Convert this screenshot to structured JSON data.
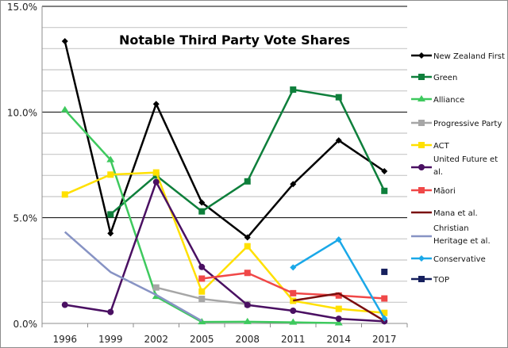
{
  "chart_data": {
    "type": "line",
    "title": "Notable Third Party Vote Shares",
    "xlabel": "",
    "ylabel": "",
    "ylim": [
      0,
      15
    ],
    "y_ticks": [
      "0.0%",
      "5.0%",
      "10.0%",
      "15.0%"
    ],
    "y_tick_values": [
      0,
      5,
      10,
      15
    ],
    "minor_gridlines_every": 1,
    "grid": true,
    "legend_position": "right",
    "categories": [
      "1996",
      "1999",
      "2002",
      "2005",
      "2008",
      "2011",
      "2014",
      "2017"
    ],
    "series": [
      {
        "name": "New Zealand First",
        "color": "#000000",
        "marker": "diamond",
        "values": [
          13.35,
          4.26,
          10.38,
          5.72,
          4.07,
          6.59,
          8.66,
          7.2
        ]
      },
      {
        "name": "Green",
        "color": "#0e7f3b",
        "marker": "square",
        "values": [
          null,
          5.16,
          7.0,
          5.3,
          6.72,
          11.06,
          10.7,
          6.27
        ]
      },
      {
        "name": "Alliance",
        "color": "#3ec95e",
        "marker": "triangle",
        "values": [
          10.1,
          7.74,
          1.27,
          0.07,
          0.08,
          0.05,
          0.02,
          null
        ]
      },
      {
        "name": "Progressive Party",
        "color": "#a6a6a6",
        "marker": "square",
        "values": [
          null,
          null,
          1.7,
          1.16,
          0.91,
          null,
          null,
          null
        ]
      },
      {
        "name": "ACT",
        "color": "#ffe000",
        "marker": "square",
        "values": [
          6.1,
          7.04,
          7.14,
          1.51,
          3.65,
          1.07,
          0.69,
          0.5
        ]
      },
      {
        "name": "United Future et al.",
        "color": "#4a1062",
        "marker": "circle",
        "values": [
          0.88,
          0.54,
          6.69,
          2.67,
          0.87,
          0.6,
          0.22,
          0.1
        ]
      },
      {
        "name": "Māori",
        "color": "#f04848",
        "marker": "square",
        "values": [
          null,
          null,
          null,
          2.12,
          2.39,
          1.43,
          1.32,
          1.18
        ]
      },
      {
        "name": "Mana et al.",
        "color": "#7a0e0e",
        "marker": "none",
        "values": [
          null,
          null,
          null,
          null,
          null,
          1.08,
          1.42,
          0.12
        ]
      },
      {
        "name": "Christian Heritage et al.",
        "color": "#8793c4",
        "marker": "none",
        "values": [
          4.33,
          2.43,
          1.35,
          0.12,
          null,
          null,
          null,
          null
        ]
      },
      {
        "name": "Conservative",
        "color": "#1aa8e8",
        "marker": "diamond",
        "values": [
          null,
          null,
          null,
          null,
          null,
          2.65,
          3.97,
          0.24
        ]
      },
      {
        "name": "TOP",
        "color": "#16205e",
        "marker": "square",
        "values": [
          null,
          null,
          null,
          null,
          null,
          null,
          null,
          2.44
        ]
      }
    ]
  }
}
